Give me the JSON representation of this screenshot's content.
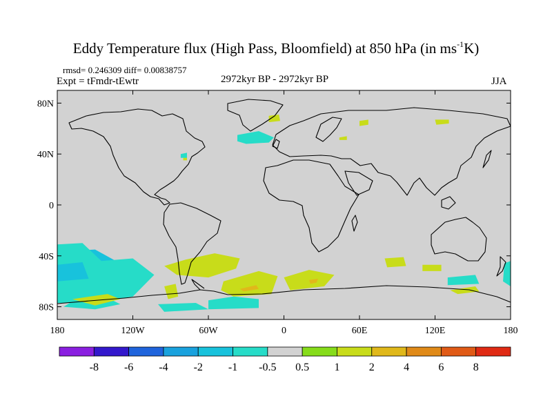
{
  "chart_data": {
    "type": "contour-map",
    "title_main": "Eddy Temperature flux (High Pass, Bloomfield) at 850 hPa (in ms",
    "title_sup": "-1",
    "title_end": "K)",
    "stats": "rmsd= 0.246309 diff= 0.00838757",
    "experiment": "Expt = tFmdr-tEwtr",
    "period": "2972kyr BP - 2972kyr BP",
    "season": "JJA",
    "x_axis": {
      "range": [
        -180,
        180
      ],
      "ticks": [
        -180,
        -120,
        -60,
        0,
        60,
        120,
        180
      ],
      "tick_labels": [
        "180",
        "120W",
        "60W",
        "0",
        "60E",
        "120E",
        "180"
      ]
    },
    "y_axis": {
      "range": [
        -90,
        90
      ],
      "ticks": [
        80,
        40,
        0,
        -40,
        -80
      ],
      "tick_labels": [
        "80N",
        "40N",
        "0",
        "40S",
        "80S"
      ]
    },
    "colorbar": {
      "levels": [
        "-8",
        "-6",
        "-4",
        "-2",
        "-1",
        "-0.5",
        "0.5",
        "1",
        "2",
        "4",
        "6",
        "8"
      ],
      "colors": [
        "#8a1fe0",
        "#3318cc",
        "#1f64dc",
        "#19a2de",
        "#18c2dc",
        "#26dcc8",
        "#d2d2d2",
        "#86dc1a",
        "#c8dc1a",
        "#e0b81a",
        "#e08a18",
        "#e05a16",
        "#e02a14"
      ]
    },
    "shaded_regions": [
      {
        "level": "1",
        "points": [
          [
            -78,
            -43
          ],
          [
            -55,
            -38
          ],
          [
            -35,
            -42
          ],
          [
            -38,
            -50
          ],
          [
            -60,
            -57
          ],
          [
            -85,
            -55
          ],
          [
            -95,
            -48
          ]
        ]
      },
      {
        "level": "-1",
        "points": [
          [
            -180,
            -37
          ],
          [
            -150,
            -35
          ],
          [
            -130,
            -46
          ],
          [
            -118,
            -58
          ],
          [
            -150,
            -70
          ],
          [
            -180,
            -72
          ]
        ]
      },
      {
        "level": "-0.5",
        "points": [
          [
            -180,
            -31
          ],
          [
            -160,
            -30
          ],
          [
            -145,
            -44
          ],
          [
            -120,
            -42
          ],
          [
            -103,
            -55
          ],
          [
            -120,
            -72
          ],
          [
            -150,
            -77
          ],
          [
            -180,
            -77
          ]
        ]
      },
      {
        "level": "-0.5",
        "points": [
          [
            -170,
            -77
          ],
          [
            -140,
            -73
          ],
          [
            -130,
            -78
          ],
          [
            -150,
            -82
          ],
          [
            -175,
            -80
          ]
        ]
      },
      {
        "level": "1",
        "points": [
          [
            -168,
            -74
          ],
          [
            -140,
            -70
          ],
          [
            -130,
            -74
          ],
          [
            -150,
            -79
          ]
        ]
      },
      {
        "level": "-1",
        "points": [
          [
            -180,
            -47
          ],
          [
            -160,
            -45
          ],
          [
            -155,
            -58
          ],
          [
            -180,
            -60
          ]
        ]
      },
      {
        "level": "1",
        "points": [
          [
            -95,
            -64
          ],
          [
            -86,
            -62
          ],
          [
            -84,
            -72
          ],
          [
            -92,
            -74
          ]
        ]
      },
      {
        "level": "-0.5",
        "points": [
          [
            -100,
            -78
          ],
          [
            -70,
            -77
          ],
          [
            -60,
            -82
          ],
          [
            -95,
            -84
          ]
        ]
      },
      {
        "level": "-0.5",
        "points": [
          [
            -60,
            -75
          ],
          [
            -40,
            -72
          ],
          [
            -20,
            -74
          ],
          [
            -20,
            -81
          ],
          [
            -60,
            -82
          ]
        ]
      },
      {
        "level": "1",
        "points": [
          [
            -48,
            -60
          ],
          [
            -20,
            -52
          ],
          [
            -5,
            -56
          ],
          [
            -10,
            -70
          ],
          [
            -40,
            -72
          ],
          [
            -50,
            -67
          ]
        ]
      },
      {
        "level": "2",
        "points": [
          [
            -35,
            -66
          ],
          [
            -22,
            -63
          ],
          [
            -20,
            -66
          ],
          [
            -32,
            -68
          ]
        ]
      },
      {
        "level": "1",
        "points": [
          [
            0,
            -57
          ],
          [
            20,
            -51
          ],
          [
            40,
            -55
          ],
          [
            32,
            -64
          ],
          [
            5,
            -67
          ]
        ]
      },
      {
        "level": "2",
        "points": [
          [
            20,
            -59
          ],
          [
            27,
            -58
          ],
          [
            26,
            -61
          ],
          [
            21,
            -62
          ]
        ]
      },
      {
        "level": "1",
        "points": [
          [
            80,
            -42
          ],
          [
            95,
            -41
          ],
          [
            97,
            -48
          ],
          [
            82,
            -49
          ]
        ]
      },
      {
        "level": "1",
        "points": [
          [
            110,
            -47
          ],
          [
            125,
            -47
          ],
          [
            125,
            -52
          ],
          [
            110,
            -52
          ]
        ]
      },
      {
        "level": "1",
        "points": [
          [
            132,
            -67
          ],
          [
            152,
            -64
          ],
          [
            155,
            -68
          ],
          [
            138,
            -70
          ]
        ]
      },
      {
        "level": "-0.5",
        "points": [
          [
            130,
            -57
          ],
          [
            152,
            -55
          ],
          [
            155,
            -62
          ],
          [
            130,
            -63
          ]
        ]
      },
      {
        "level": "-0.5",
        "points": [
          [
            175,
            -46
          ],
          [
            180,
            -44
          ],
          [
            180,
            -64
          ],
          [
            174,
            -60
          ]
        ]
      },
      {
        "level": "-0.5",
        "points": [
          [
            -37,
            55
          ],
          [
            -20,
            58
          ],
          [
            -8,
            53
          ],
          [
            -12,
            49
          ],
          [
            -30,
            48
          ],
          [
            -37,
            50
          ]
        ]
      },
      {
        "level": "1",
        "points": [
          [
            -12,
            70
          ],
          [
            -4,
            71
          ],
          [
            -3,
            66
          ],
          [
            -12,
            65
          ]
        ]
      },
      {
        "level": "1",
        "points": [
          [
            60,
            66
          ],
          [
            67,
            67
          ],
          [
            67,
            63
          ],
          [
            60,
            62
          ]
        ]
      },
      {
        "level": "1",
        "points": [
          [
            120,
            67
          ],
          [
            131,
            67
          ],
          [
            131,
            64
          ],
          [
            121,
            63
          ]
        ]
      },
      {
        "level": "1",
        "points": [
          [
            44,
            53
          ],
          [
            50,
            54
          ],
          [
            50,
            51
          ],
          [
            44,
            51
          ]
        ]
      },
      {
        "level": "1",
        "points": [
          [
            -80,
            37
          ],
          [
            -77,
            38
          ],
          [
            -77,
            35
          ],
          [
            -80,
            35
          ]
        ]
      },
      {
        "level": "-0.5",
        "points": [
          [
            -82,
            40
          ],
          [
            -77,
            41
          ],
          [
            -77,
            37
          ],
          [
            -82,
            37
          ]
        ]
      }
    ]
  }
}
